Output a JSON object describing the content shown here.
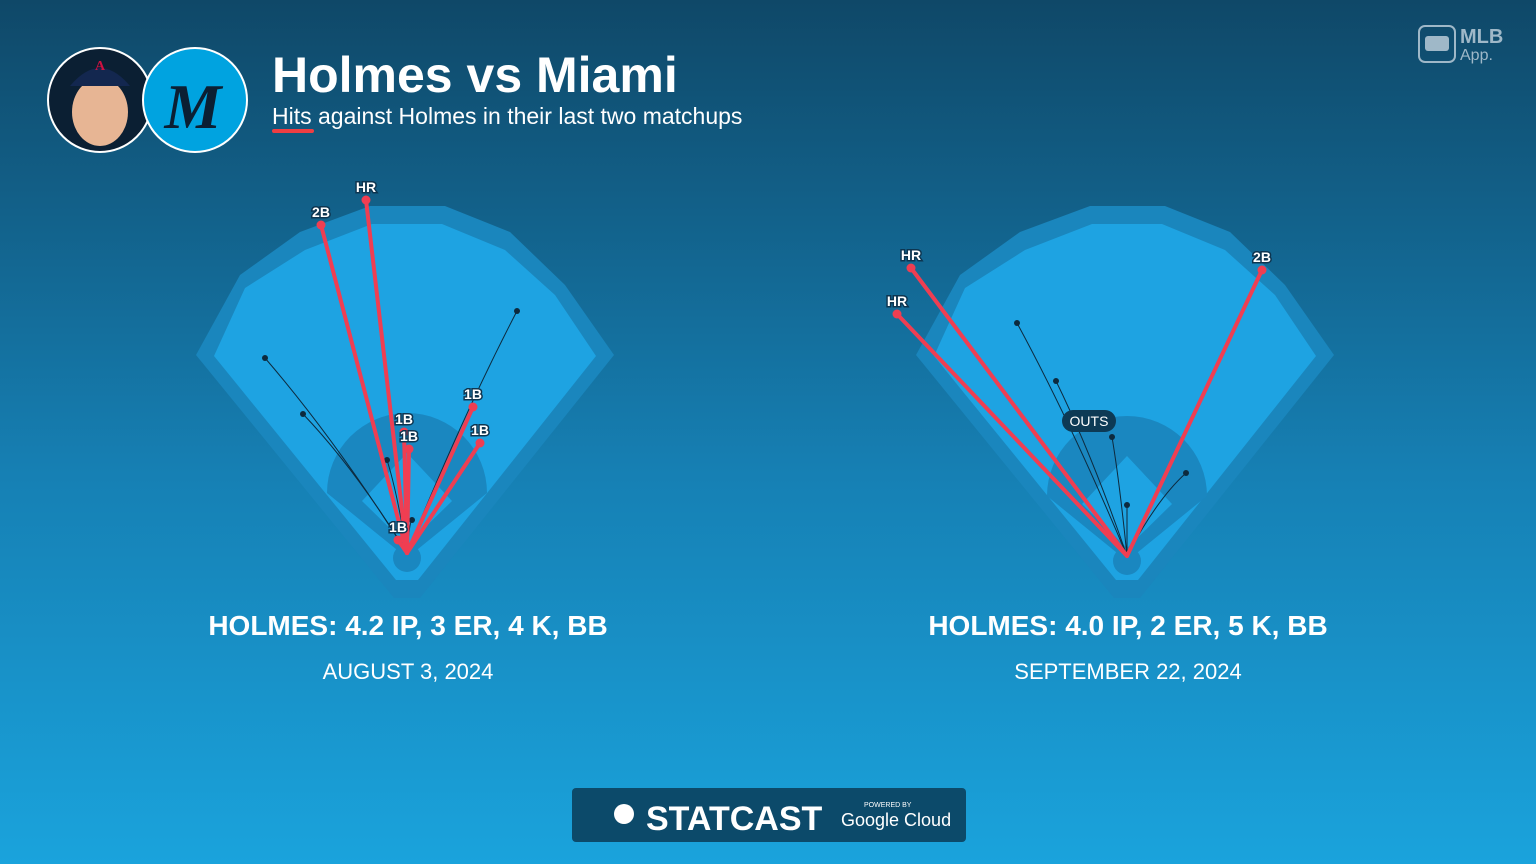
{
  "header": {
    "title": "Holmes vs Miami",
    "subtitle": "Hits against Holmes in their last two matchups"
  },
  "brand": {
    "app_line1": "MLB",
    "app_line2": "App.",
    "statcast": "STATCAST",
    "powered": "POWERED BY",
    "cloud": "Google Cloud"
  },
  "games": [
    {
      "hits": [
        "2B",
        "HR",
        "1B",
        "1B",
        "1B",
        "1B",
        "1B"
      ],
      "line": "HOLMES: 4.2 IP, 3 ER, 4 K, BB",
      "date": "AUGUST 3, 2024"
    },
    {
      "hits": [
        "HR",
        "HR",
        "2B"
      ],
      "outs_label": "OUTS",
      "line": "HOLMES: 4.0 IP, 2 ER, 5 K, BB",
      "date": "SEPTEMBER 22, 2024"
    }
  ]
}
